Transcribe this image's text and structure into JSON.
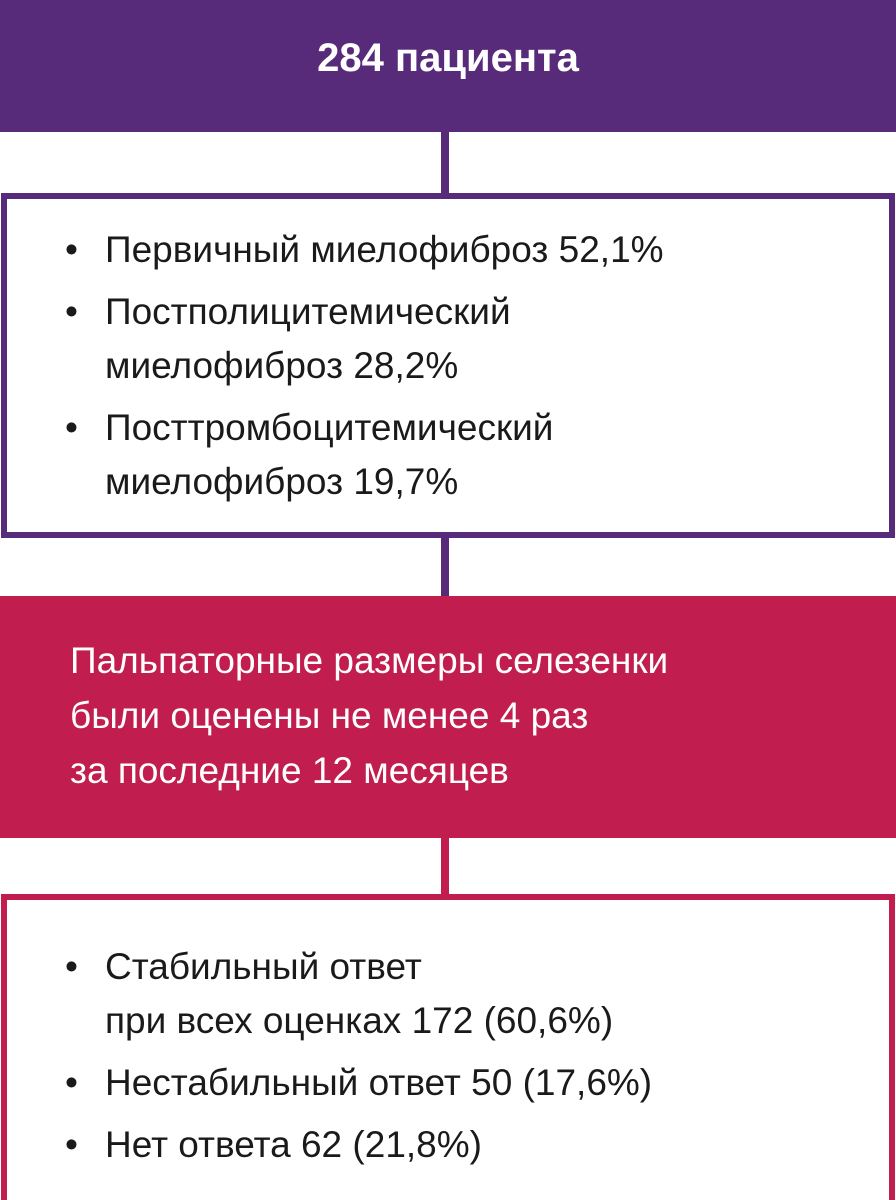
{
  "header": {
    "title": "284 пациента"
  },
  "mf_types": {
    "items": [
      {
        "bullet": "•",
        "text": "Первичный миелофиброз 52,1%"
      },
      {
        "bullet": "•",
        "text": "Постполицитемический\nмиелофиброз 28,2%"
      },
      {
        "bullet": "•",
        "text": "Посттромбоцитемический\nмиелофиброз 19,7%"
      }
    ]
  },
  "criterion": {
    "lines": [
      "Пальпаторные размеры селезенки",
      "были оценены не менее 4 раз",
      "за последние 12 месяцев"
    ]
  },
  "responses": {
    "items": [
      {
        "bullet": "•",
        "text": "Стабильный ответ\nпри всех оценках 172 (60,6%)"
      },
      {
        "bullet": "•",
        "text": "Нестабильный ответ 50 (17,6%)"
      },
      {
        "bullet": "•",
        "text": "Нет ответа 62 (21,8%)"
      }
    ]
  },
  "colors": {
    "purple": "#582a7a",
    "magenta": "#c11d4f"
  }
}
